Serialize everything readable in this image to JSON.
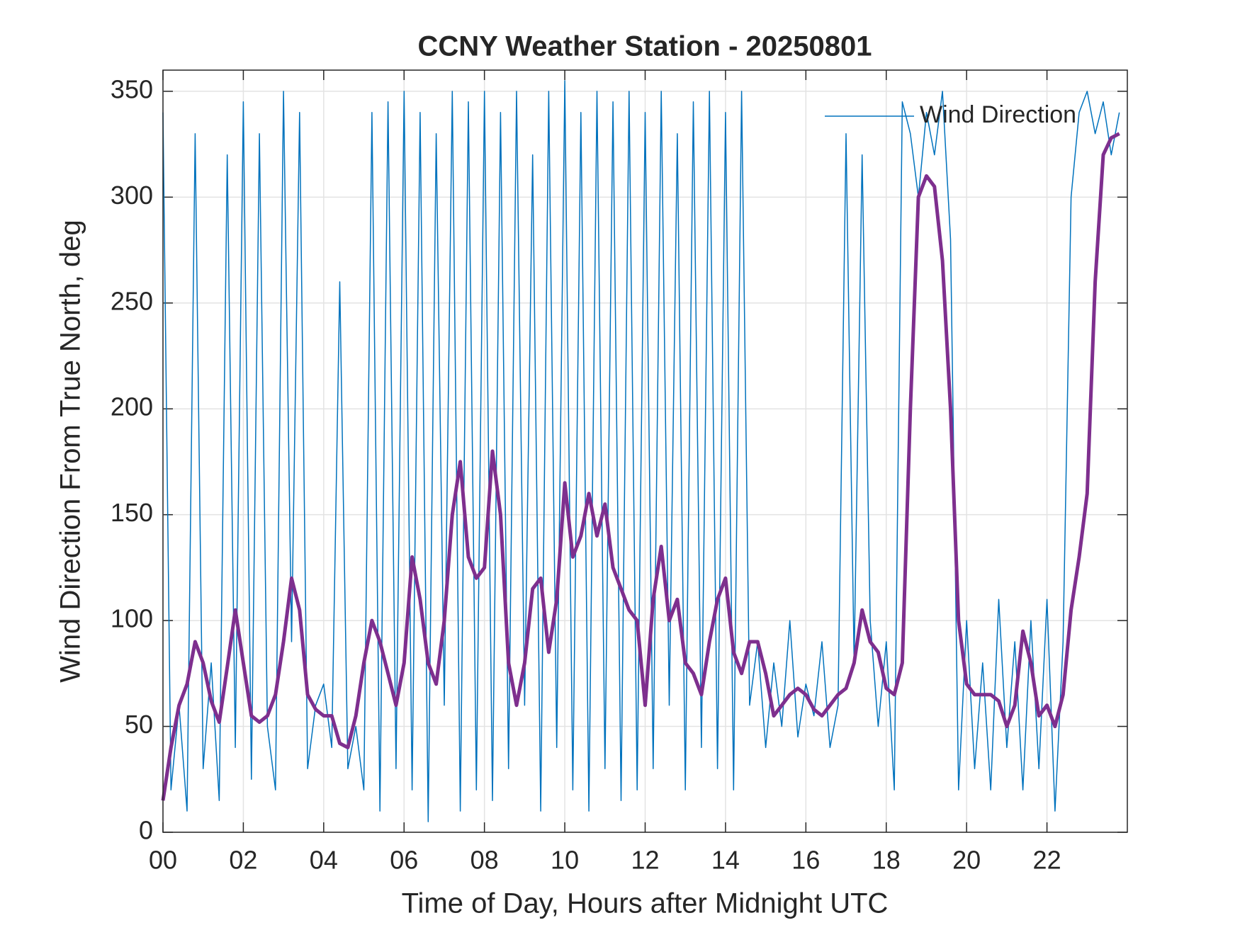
{
  "chart_data": {
    "type": "line",
    "title": "CCNY Weather Station - 20250801",
    "xlabel": "Time of Day, Hours after Midnight UTC",
    "ylabel": "Wind Direction From True North, deg",
    "xlim": [
      0,
      24
    ],
    "xticks": [
      {
        "value": 0,
        "label": "00"
      },
      {
        "value": 2,
        "label": "02"
      },
      {
        "value": 4,
        "label": "04"
      },
      {
        "value": 6,
        "label": "06"
      },
      {
        "value": 8,
        "label": "08"
      },
      {
        "value": 10,
        "label": "10"
      },
      {
        "value": 12,
        "label": "12"
      },
      {
        "value": 14,
        "label": "14"
      },
      {
        "value": 16,
        "label": "16"
      },
      {
        "value": 18,
        "label": "18"
      },
      {
        "value": 20,
        "label": "20"
      },
      {
        "value": 22,
        "label": "22"
      }
    ],
    "ylim": [
      0,
      360
    ],
    "yticks": [
      0,
      50,
      100,
      150,
      200,
      250,
      300,
      350
    ],
    "grid": true,
    "legend": "upper right",
    "x": [
      0,
      0.2,
      0.4,
      0.6,
      0.8,
      1,
      1.2,
      1.4,
      1.6,
      1.8,
      2,
      2.2,
      2.4,
      2.6,
      2.8,
      3,
      3.2,
      3.4,
      3.6,
      3.8,
      4,
      4.2,
      4.4,
      4.6,
      4.8,
      5,
      5.2,
      5.4,
      5.6,
      5.8,
      6,
      6.2,
      6.4,
      6.6,
      6.8,
      7,
      7.2,
      7.4,
      7.6,
      7.8,
      8,
      8.2,
      8.4,
      8.6,
      8.8,
      9,
      9.2,
      9.4,
      9.6,
      9.8,
      10,
      10.2,
      10.4,
      10.6,
      10.8,
      11,
      11.2,
      11.4,
      11.6,
      11.8,
      12,
      12.2,
      12.4,
      12.6,
      12.8,
      13,
      13.2,
      13.4,
      13.6,
      13.8,
      14,
      14.2,
      14.4,
      14.6,
      14.8,
      15,
      15.2,
      15.4,
      15.6,
      15.8,
      16,
      16.2,
      16.4,
      16.6,
      16.8,
      17,
      17.2,
      17.4,
      17.6,
      17.8,
      18,
      18.2,
      18.4,
      18.6,
      18.8,
      19,
      19.2,
      19.4,
      19.6,
      19.8,
      20,
      20.2,
      20.4,
      20.6,
      20.8,
      21,
      21.2,
      21.4,
      21.6,
      21.8,
      22,
      22.2,
      22.4,
      22.6,
      22.8,
      23,
      23.2,
      23.4,
      23.6,
      23.8
    ],
    "series": [
      {
        "name": "Wind Direction",
        "color": "#0072bd",
        "width": 1.5,
        "values": [
          340,
          20,
          60,
          10,
          330,
          30,
          80,
          15,
          320,
          40,
          345,
          25,
          330,
          50,
          20,
          350,
          90,
          340,
          30,
          60,
          70,
          40,
          260,
          30,
          50,
          20,
          340,
          10,
          345,
          30,
          350,
          20,
          340,
          5,
          330,
          60,
          350,
          10,
          345,
          20,
          350,
          15,
          340,
          30,
          350,
          60,
          320,
          10,
          350,
          40,
          355,
          20,
          340,
          10,
          350,
          30,
          345,
          15,
          350,
          20,
          340,
          30,
          350,
          60,
          330,
          20,
          345,
          40,
          350,
          30,
          340,
          20,
          350,
          60,
          90,
          40,
          80,
          50,
          100,
          45,
          70,
          55,
          90,
          40,
          60,
          330,
          80,
          320,
          100,
          50,
          90,
          20,
          345,
          330,
          300,
          340,
          320,
          350,
          280,
          20,
          100,
          30,
          80,
          20,
          110,
          40,
          90,
          20,
          100,
          30,
          110,
          10,
          90,
          300,
          340,
          350,
          330,
          345,
          320,
          340
        ]
      },
      {
        "color": "#7e2f8e",
        "width": 5,
        "values": [
          15,
          40,
          60,
          70,
          90,
          80,
          62,
          52,
          78,
          105,
          80,
          55,
          52,
          55,
          65,
          90,
          120,
          105,
          65,
          58,
          55,
          55,
          42,
          40,
          55,
          80,
          100,
          90,
          75,
          60,
          80,
          130,
          110,
          80,
          70,
          100,
          150,
          175,
          130,
          120,
          125,
          180,
          150,
          80,
          60,
          80,
          115,
          120,
          85,
          110,
          165,
          130,
          140,
          160,
          140,
          155,
          125,
          115,
          105,
          100,
          60,
          110,
          135,
          100,
          110,
          80,
          75,
          65,
          90,
          110,
          120,
          85,
          75,
          90,
          90,
          75,
          55,
          60,
          65,
          68,
          65,
          58,
          55,
          60,
          65,
          68,
          80,
          105,
          90,
          85,
          68,
          65,
          80,
          200,
          300,
          310,
          305,
          270,
          200,
          100,
          70,
          65,
          65,
          65,
          62,
          50,
          60,
          95,
          80,
          55,
          60,
          50,
          65,
          105,
          130,
          160,
          260,
          320,
          328,
          330
        ]
      }
    ]
  }
}
